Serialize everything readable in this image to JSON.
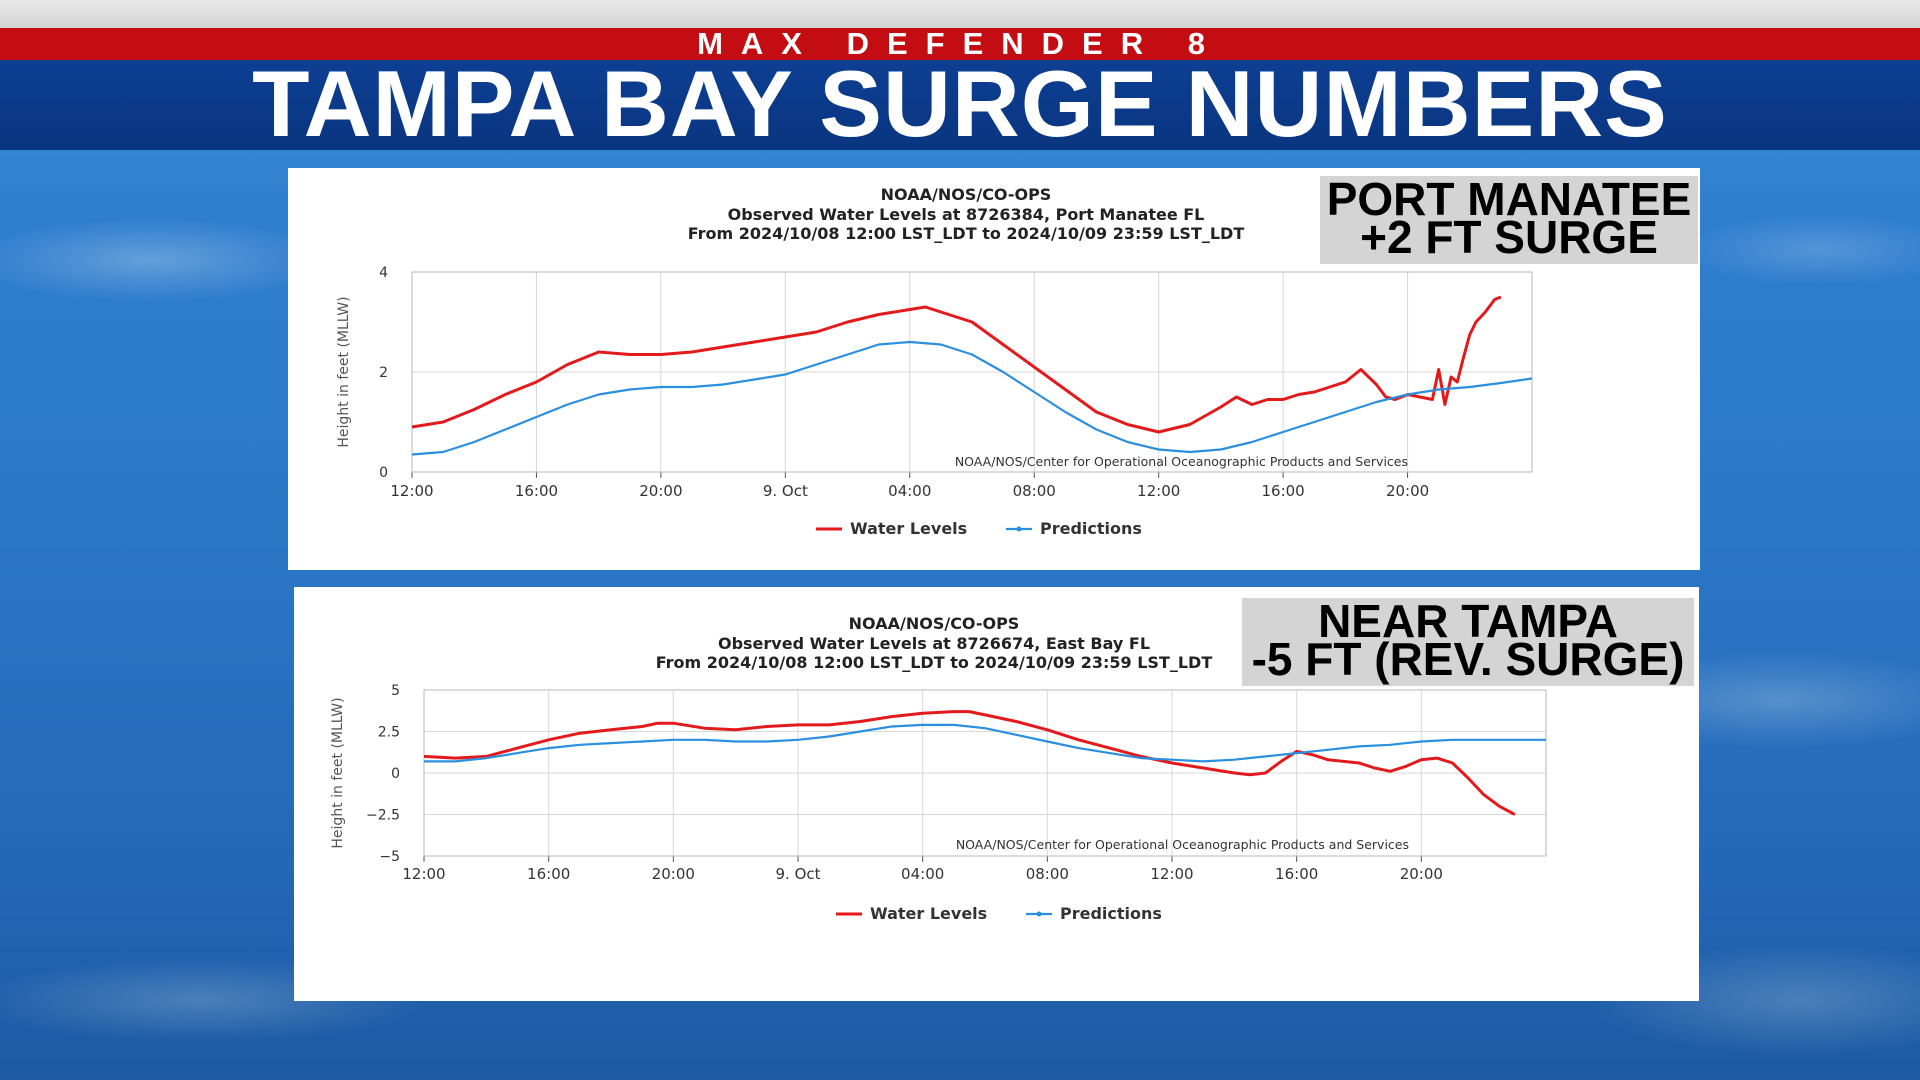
{
  "header": {
    "kicker": "MAX DEFENDER 8",
    "title": "TAMPA BAY SURGE NUMBERS"
  },
  "colors": {
    "water": "#e31a1c",
    "pred": "#2b8fe0",
    "grid": "#d8d8d8",
    "axis": "#555555",
    "plotBorder": "#b9b9b9"
  },
  "callouts": [
    {
      "line1": "PORT MANATEE",
      "line2": "+2 FT SURGE"
    },
    {
      "line1": "NEAR TAMPA",
      "line2": "-5 FT (REV. SURGE)"
    }
  ],
  "chart_data": [
    {
      "type": "line",
      "title": "NOAA/NOS/CO-OPS",
      "subtitle1": "Observed Water Levels at 8726384, Port Manatee FL",
      "subtitle2": "From 2024/10/08 12:00 LST_LDT to 2024/10/09 23:59 LST_LDT",
      "xlabel": "",
      "ylabel": "Height in feet (MLLW)",
      "credit": "NOAA/NOS/Center for Operational Oceanographic Products and Services",
      "xlim": [
        0,
        36
      ],
      "ylim": [
        0,
        4
      ],
      "xticks": [
        {
          "x": 0,
          "label": "12:00"
        },
        {
          "x": 4,
          "label": "16:00"
        },
        {
          "x": 8,
          "label": "20:00"
        },
        {
          "x": 12,
          "label": "9. Oct"
        },
        {
          "x": 16,
          "label": "04:00"
        },
        {
          "x": 20,
          "label": "08:00"
        },
        {
          "x": 24,
          "label": "12:00"
        },
        {
          "x": 28,
          "label": "16:00"
        },
        {
          "x": 32,
          "label": "20:00"
        }
      ],
      "yticks": [
        {
          "y": 0,
          "label": "0"
        },
        {
          "y": 2,
          "label": "2"
        },
        {
          "y": 4,
          "label": "4"
        }
      ],
      "legend": [
        "Water Levels",
        "Predictions"
      ],
      "series": [
        {
          "name": "Water Levels",
          "x": [
            0,
            1,
            2,
            3,
            4,
            5,
            6,
            7,
            8,
            9,
            10,
            11,
            12,
            13,
            14,
            15,
            16,
            16.5,
            17,
            18,
            19,
            20,
            21,
            22,
            23,
            24,
            25,
            26,
            26.5,
            27,
            27.5,
            28,
            28.5,
            29,
            29.5,
            30,
            30.5,
            31,
            31.3,
            31.6,
            32,
            32.4,
            32.8,
            33,
            33.2,
            33.4,
            33.6,
            33.8,
            34,
            34.2,
            34.5,
            34.8,
            35
          ],
          "y": [
            0.9,
            1.0,
            1.25,
            1.55,
            1.8,
            2.15,
            2.4,
            2.35,
            2.35,
            2.4,
            2.5,
            2.6,
            2.7,
            2.8,
            3.0,
            3.15,
            3.25,
            3.3,
            3.2,
            3.0,
            2.55,
            2.1,
            1.65,
            1.2,
            0.95,
            0.8,
            0.95,
            1.3,
            1.5,
            1.35,
            1.45,
            1.45,
            1.55,
            1.6,
            1.7,
            1.8,
            2.05,
            1.75,
            1.5,
            1.45,
            1.55,
            1.5,
            1.45,
            2.05,
            1.35,
            1.9,
            1.8,
            2.3,
            2.75,
            3.0,
            3.2,
            3.45,
            3.5
          ]
        },
        {
          "name": "Predictions",
          "x": [
            0,
            1,
            2,
            3,
            4,
            5,
            6,
            7,
            8,
            9,
            10,
            11,
            12,
            13,
            14,
            15,
            16,
            17,
            18,
            19,
            20,
            21,
            22,
            23,
            24,
            25,
            26,
            27,
            28,
            29,
            30,
            31,
            32,
            33,
            34,
            35,
            36
          ],
          "y": [
            0.35,
            0.4,
            0.6,
            0.85,
            1.1,
            1.35,
            1.55,
            1.65,
            1.7,
            1.7,
            1.75,
            1.85,
            1.95,
            2.15,
            2.35,
            2.55,
            2.6,
            2.55,
            2.35,
            2.0,
            1.6,
            1.2,
            0.85,
            0.6,
            0.45,
            0.4,
            0.45,
            0.6,
            0.8,
            1.0,
            1.2,
            1.4,
            1.55,
            1.65,
            1.7,
            1.78,
            1.87
          ]
        }
      ]
    },
    {
      "type": "line",
      "title": "NOAA/NOS/CO-OPS",
      "subtitle1": "Observed Water Levels at 8726674, East Bay FL",
      "subtitle2": "From 2024/10/08 12:00 LST_LDT to 2024/10/09 23:59 LST_LDT",
      "xlabel": "",
      "ylabel": "Height in feet (MLLW)",
      "credit": "NOAA/NOS/Center for Operational Oceanographic Products and Services",
      "xlim": [
        0,
        36
      ],
      "ylim": [
        -5,
        5
      ],
      "xticks": [
        {
          "x": 0,
          "label": "12:00"
        },
        {
          "x": 4,
          "label": "16:00"
        },
        {
          "x": 8,
          "label": "20:00"
        },
        {
          "x": 12,
          "label": "9. Oct"
        },
        {
          "x": 16,
          "label": "04:00"
        },
        {
          "x": 20,
          "label": "08:00"
        },
        {
          "x": 24,
          "label": "12:00"
        },
        {
          "x": 28,
          "label": "16:00"
        },
        {
          "x": 32,
          "label": "20:00"
        }
      ],
      "yticks": [
        {
          "y": -5,
          "label": "−5"
        },
        {
          "y": -2.5,
          "label": "−2.5"
        },
        {
          "y": 0,
          "label": "0"
        },
        {
          "y": 2.5,
          "label": "2.5"
        },
        {
          "y": 5,
          "label": "5"
        }
      ],
      "legend": [
        "Water Levels",
        "Predictions"
      ],
      "series": [
        {
          "name": "Water Levels",
          "x": [
            0,
            1,
            2,
            3,
            4,
            5,
            6,
            7,
            7.5,
            8,
            9,
            10,
            11,
            12,
            13,
            14,
            15,
            16,
            17,
            17.5,
            18,
            19,
            20,
            21,
            22,
            23,
            24,
            25,
            26,
            26.5,
            27,
            27.5,
            28,
            28.5,
            29,
            30,
            30.5,
            31,
            31.5,
            32,
            32.5,
            33,
            33.5,
            34,
            34.5,
            35
          ],
          "y": [
            1.0,
            0.9,
            1.0,
            1.5,
            2.0,
            2.4,
            2.6,
            2.8,
            3.0,
            3.0,
            2.7,
            2.6,
            2.8,
            2.9,
            2.9,
            3.1,
            3.4,
            3.6,
            3.7,
            3.7,
            3.5,
            3.1,
            2.6,
            2.0,
            1.5,
            1.0,
            0.6,
            0.3,
            0.0,
            -0.1,
            0.0,
            0.7,
            1.3,
            1.1,
            0.8,
            0.6,
            0.3,
            0.1,
            0.4,
            0.8,
            0.9,
            0.6,
            -0.3,
            -1.3,
            -2.0,
            -2.5
          ]
        },
        {
          "name": "Predictions",
          "x": [
            0,
            1,
            2,
            3,
            4,
            5,
            6,
            7,
            8,
            9,
            10,
            11,
            12,
            13,
            14,
            15,
            16,
            17,
            18,
            19,
            20,
            21,
            22,
            23,
            24,
            25,
            26,
            27,
            28,
            29,
            30,
            31,
            32,
            33,
            34,
            35,
            36
          ],
          "y": [
            0.7,
            0.7,
            0.9,
            1.2,
            1.5,
            1.7,
            1.8,
            1.9,
            2.0,
            2.0,
            1.9,
            1.9,
            2.0,
            2.2,
            2.5,
            2.8,
            2.9,
            2.9,
            2.7,
            2.3,
            1.9,
            1.5,
            1.2,
            0.9,
            0.8,
            0.7,
            0.8,
            1.0,
            1.2,
            1.4,
            1.6,
            1.7,
            1.9,
            2.0,
            2.0,
            2.0,
            2.0
          ]
        }
      ]
    }
  ]
}
